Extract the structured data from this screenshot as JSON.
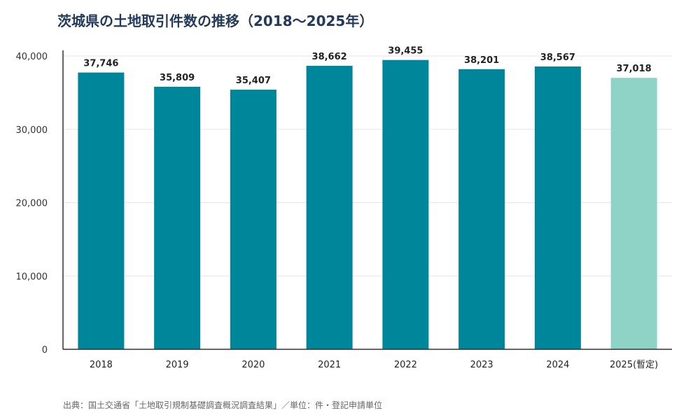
{
  "colors": {
    "bar": "#00869a",
    "bar_provisional": "#8fd3c6",
    "grid": "#e6e6e6",
    "axis": "#333333",
    "title": "#233a5c"
  },
  "source_note": "出典：国土交通省「土地取引規制基礎調査概況調査結果」／単位：件・登記申請単位",
  "chart_data": {
    "type": "bar",
    "title": "茨城県の土地取引件数の推移（2018〜2025年）",
    "xlabel": "",
    "ylabel": "",
    "categories": [
      "2018",
      "2019",
      "2020",
      "2021",
      "2022",
      "2023",
      "2024",
      "2025(暫定)"
    ],
    "values": [
      37746,
      35809,
      35407,
      38662,
      39455,
      38201,
      38567,
      37018
    ],
    "value_labels": [
      "37,746",
      "35,809",
      "35,407",
      "38,662",
      "39,455",
      "38,201",
      "38,567",
      "37,018"
    ],
    "provisional": [
      false,
      false,
      false,
      false,
      false,
      false,
      false,
      true
    ],
    "ylim": [
      0,
      40000
    ],
    "yticks": [
      0,
      10000,
      20000,
      30000,
      40000
    ],
    "ytick_labels": [
      "0",
      "10,000",
      "20,000",
      "30,000",
      "40,000"
    ],
    "grid": true,
    "legend": "none"
  }
}
